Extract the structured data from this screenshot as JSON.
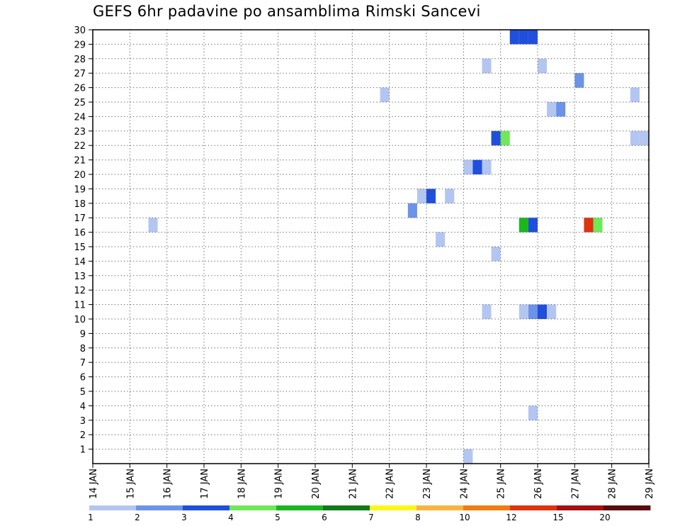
{
  "chart_data": {
    "type": "heatmap",
    "title": "GEFS 6hr padavine po ansamblima Rimski Sancevi",
    "xlabel": "",
    "ylabel": "",
    "x_ticks": [
      "14 JAN",
      "15 JAN",
      "16 JAN",
      "17 JAN",
      "18 JAN",
      "19 JAN",
      "20 JAN",
      "21 JAN",
      "22 JAN",
      "23 JAN",
      "24 JAN",
      "25 JAN",
      "26 JAN",
      "27 JAN",
      "28 JAN",
      "29 JAN"
    ],
    "xlim": [
      "14 JAN 00Z",
      "29 JAN 00Z"
    ],
    "y_ticks": [
      1,
      2,
      3,
      4,
      5,
      6,
      7,
      8,
      9,
      10,
      11,
      12,
      13,
      14,
      15,
      16,
      17,
      18,
      19,
      20,
      21,
      22,
      23,
      24,
      25,
      26,
      27,
      28,
      29,
      30
    ],
    "ylim": [
      0,
      30
    ],
    "grid": true,
    "legend": {
      "placement": "bottom",
      "labels": [
        "1",
        "2",
        "3",
        "4",
        "5",
        "6",
        "7",
        "8",
        "10",
        "12",
        "15",
        "20"
      ],
      "colors": [
        "#b3c6f2",
        "#6b93e8",
        "#1f4fdc",
        "#6fe85a",
        "#19b81e",
        "#117a1a",
        "#fbf61a",
        "#f8b440",
        "#f07d10",
        "#e0320f",
        "#a51010",
        "#5a0c0c"
      ]
    },
    "points": [
      {
        "member": 30,
        "time": "25 JAN 06Z",
        "color": "#1f4fdc"
      },
      {
        "member": 30,
        "time": "25 JAN 12Z",
        "color": "#1f4fdc"
      },
      {
        "member": 30,
        "time": "25 JAN 18Z",
        "color": "#1f4fdc"
      },
      {
        "member": 28,
        "time": "24 JAN 12Z",
        "color": "#b3c6f2"
      },
      {
        "member": 28,
        "time": "26 JAN 00Z",
        "color": "#b3c6f2"
      },
      {
        "member": 27,
        "time": "27 JAN 00Z",
        "color": "#6b93e8"
      },
      {
        "member": 26,
        "time": "21 JAN 18Z",
        "color": "#b3c6f2"
      },
      {
        "member": 26,
        "time": "28 JAN 12Z",
        "color": "#b3c6f2"
      },
      {
        "member": 25,
        "time": "26 JAN 06Z",
        "color": "#b3c6f2"
      },
      {
        "member": 25,
        "time": "26 JAN 12Z",
        "color": "#6b93e8"
      },
      {
        "member": 23,
        "time": "24 JAN 18Z",
        "color": "#1f4fdc"
      },
      {
        "member": 23,
        "time": "25 JAN 00Z",
        "color": "#6fe85a"
      },
      {
        "member": 23,
        "time": "28 JAN 12Z",
        "color": "#b3c6f2"
      },
      {
        "member": 23,
        "time": "28 JAN 18Z",
        "color": "#b3c6f2"
      },
      {
        "member": 21,
        "time": "24 JAN 00Z",
        "color": "#b3c6f2"
      },
      {
        "member": 21,
        "time": "24 JAN 06Z",
        "color": "#1f4fdc"
      },
      {
        "member": 21,
        "time": "24 JAN 12Z",
        "color": "#b3c6f2"
      },
      {
        "member": 19,
        "time": "22 JAN 18Z",
        "color": "#b3c6f2"
      },
      {
        "member": 19,
        "time": "23 JAN 00Z",
        "color": "#1f4fdc"
      },
      {
        "member": 19,
        "time": "23 JAN 12Z",
        "color": "#b3c6f2"
      },
      {
        "member": 18,
        "time": "22 JAN 12Z",
        "color": "#6b93e8"
      },
      {
        "member": 17,
        "time": "15 JAN 12Z",
        "color": "#b3c6f2"
      },
      {
        "member": 17,
        "time": "25 JAN 12Z",
        "color": "#19b81e"
      },
      {
        "member": 17,
        "time": "25 JAN 18Z",
        "color": "#1f4fdc"
      },
      {
        "member": 17,
        "time": "27 JAN 06Z",
        "color": "#e0320f"
      },
      {
        "member": 17,
        "time": "27 JAN 12Z",
        "color": "#6fe85a"
      },
      {
        "member": 16,
        "time": "23 JAN 06Z",
        "color": "#b3c6f2"
      },
      {
        "member": 15,
        "time": "24 JAN 18Z",
        "color": "#b3c6f2"
      },
      {
        "member": 11,
        "time": "24 JAN 12Z",
        "color": "#b3c6f2"
      },
      {
        "member": 11,
        "time": "25 JAN 12Z",
        "color": "#b3c6f2"
      },
      {
        "member": 11,
        "time": "25 JAN 18Z",
        "color": "#6b93e8"
      },
      {
        "member": 11,
        "time": "26 JAN 00Z",
        "color": "#1f4fdc"
      },
      {
        "member": 11,
        "time": "26 JAN 06Z",
        "color": "#b3c6f2"
      },
      {
        "member": 4,
        "time": "25 JAN 18Z",
        "color": "#b3c6f2"
      },
      {
        "member": 1,
        "time": "24 JAN 00Z",
        "color": "#b3c6f2"
      }
    ]
  }
}
